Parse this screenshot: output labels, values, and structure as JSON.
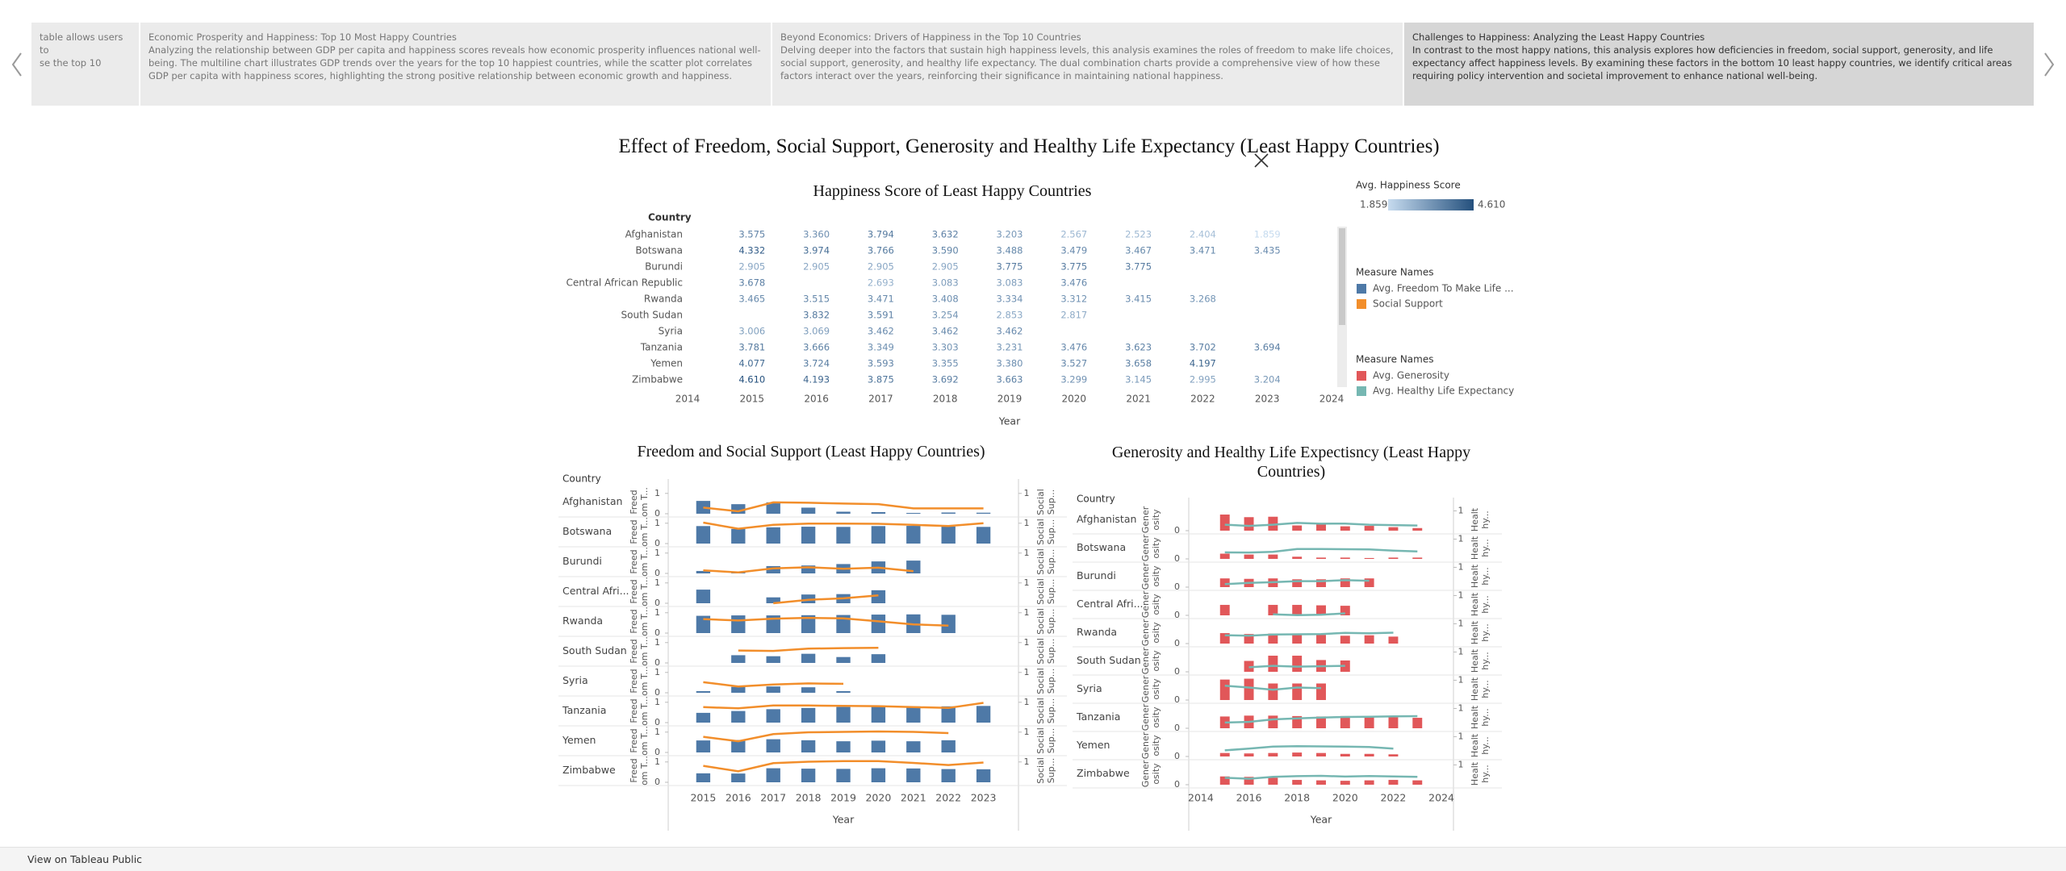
{
  "story_points": [
    {
      "lines": [
        "table allows users to",
        "se the top 10"
      ]
    },
    {
      "title": "Economic Prosperity and Happiness: Top 10 Most Happy Countries",
      "text": "Analyzing the relationship between GDP per capita and happiness scores reveals how economic prosperity influences national well-being. The multiline chart illustrates GDP trends over the years for the top 10 happiest countries, while the scatter plot correlates GDP per capita with happiness scores, highlighting the strong positive relationship between economic growth and happiness."
    },
    {
      "title": "Beyond Economics: Drivers of Happiness in the Top 10 Countries",
      "text": "Delving deeper into the factors that sustain high happiness levels, this analysis examines the roles of freedom to make life choices, social support, generosity, and healthy life expectancy. The dual combination charts provide a comprehensive view of how these factors interact over the years, reinforcing their significance in maintaining national happiness."
    },
    {
      "title": "Challenges to Happiness: Analyzing the Least Happy Countries",
      "text": "In contrast to the most happy nations, this analysis explores how deficiencies in freedom, social support, generosity, and life expectancy affect happiness levels. By examining these factors in the bottom 10 least happy countries, we identify critical areas requiring policy intervention and societal improvement to enhance national well-being."
    }
  ],
  "title": "Effect of Freedom, Social Support, Generosity and Healthy Life Expectancy (Least Happy Countries)",
  "chart_data": [
    {
      "type": "heatmap",
      "title": "Happiness Score of Least Happy Countries",
      "row_header": "Country",
      "x_label": "Year",
      "categories": [
        "Afghanistan",
        "Botswana",
        "Burundi",
        "Central African Republic",
        "Rwanda",
        "South Sudan",
        "Syria",
        "Tanzania",
        "Yemen",
        "Zimbabwe"
      ],
      "x": [
        2015,
        2016,
        2017,
        2018,
        2019,
        2020,
        2021,
        2022,
        2023
      ],
      "xlim": [
        2014,
        2024
      ],
      "xticks": [
        2014,
        2015,
        2016,
        2017,
        2018,
        2019,
        2020,
        2021,
        2022,
        2023,
        2024
      ],
      "values": [
        [
          3.575,
          3.36,
          3.794,
          3.632,
          3.203,
          2.567,
          2.523,
          2.404,
          1.859
        ],
        [
          4.332,
          3.974,
          3.766,
          3.59,
          3.488,
          3.479,
          3.467,
          3.471,
          3.435
        ],
        [
          2.905,
          2.905,
          2.905,
          2.905,
          3.775,
          3.775,
          3.775,
          null,
          null
        ],
        [
          3.678,
          null,
          2.693,
          3.083,
          3.083,
          3.476,
          null,
          null,
          null
        ],
        [
          3.465,
          3.515,
          3.471,
          3.408,
          3.334,
          3.312,
          3.415,
          3.268,
          null
        ],
        [
          null,
          3.832,
          3.591,
          3.254,
          2.853,
          2.817,
          null,
          null,
          null
        ],
        [
          3.006,
          3.069,
          3.462,
          3.462,
          3.462,
          null,
          null,
          null,
          null
        ],
        [
          3.781,
          3.666,
          3.349,
          3.303,
          3.231,
          3.476,
          3.623,
          3.702,
          3.694
        ],
        [
          4.077,
          3.724,
          3.593,
          3.355,
          3.38,
          3.527,
          3.658,
          4.197,
          null
        ],
        [
          4.61,
          4.193,
          3.875,
          3.692,
          3.663,
          3.299,
          3.145,
          2.995,
          3.204
        ]
      ],
      "value_labels": [
        [
          "3.575",
          "3.360",
          "3.794",
          "3.632",
          "3.203",
          "2.567",
          "2.523",
          "2.404",
          "1.859"
        ],
        [
          "4.332",
          "3.974",
          "3.766",
          "3.590",
          "3.488",
          "3.479",
          "3.467",
          "3.471",
          "3.435"
        ],
        [
          "2.905",
          "2.905",
          "2.905",
          "2.905",
          "3.775",
          "3.775",
          "3.775",
          null,
          null
        ],
        [
          "3.678",
          null,
          "2.693",
          "3.083",
          "3.083",
          "3.476",
          null,
          null,
          null
        ],
        [
          "3.465",
          "3.515",
          "3.471",
          "3.408",
          "3.334",
          "3.312",
          "3.415",
          "3.268",
          null
        ],
        [
          null,
          "3.832",
          "3.591",
          "3.254",
          "2.853",
          "2.817",
          null,
          null,
          null
        ],
        [
          "3.006",
          "3.069",
          "3.462",
          "3.462",
          "3.462",
          null,
          null,
          null,
          null
        ],
        [
          "3.781",
          "3.666",
          "3.349",
          "3.303",
          "3.231",
          "3.476",
          "3.623",
          "3.702",
          "3.694"
        ],
        [
          "4.077",
          "3.724",
          "3.593",
          "3.355",
          "3.380",
          "3.527",
          "3.658",
          "4.197",
          null
        ],
        [
          "4.610",
          "4.193",
          "3.875",
          "3.692",
          "3.663",
          "3.299",
          "3.145",
          "2.995",
          "3.204"
        ]
      ],
      "color_title": "Avg. Happiness Score",
      "color_range": [
        1.859,
        {
          "value": 4.61,
          "label": "4.610"
        }
      ],
      "colors": [
        "#c6dbef",
        "#24507d"
      ]
    },
    {
      "type": "bar_line",
      "title": "Freedom and Social Support (Least Happy Countries)",
      "row_header": "Country",
      "x_label": "Year",
      "legend_title": "Measure Names",
      "categories": [
        "Afghanistan",
        "Botswana",
        "Burundi",
        "Central Afri...",
        "Rwanda",
        "South Sudan",
        "Syria",
        "Tanzania",
        "Yemen",
        "Zimbabwe"
      ],
      "x": [
        2015,
        2016,
        2017,
        2018,
        2019,
        2020,
        2021,
        2022,
        2023
      ],
      "xlim": [
        2014,
        2024
      ],
      "xticks": [
        2015,
        2016,
        2017,
        2018,
        2019,
        2020,
        2021,
        2022,
        2023
      ],
      "ylim": [
        0,
        1.15
      ],
      "yticks": [
        0,
        1
      ],
      "y2lim": [
        0,
        1.15
      ],
      "y2ticks": [
        1
      ],
      "y_title_lines": [
        "Freed",
        "om T..."
      ],
      "y2_title_lines": [
        "Social",
        "Sup..."
      ],
      "series": [
        {
          "name": "Avg. Freedom To Make Life ...",
          "color": "#4e79a7",
          "values": [
            [
              0.63,
              0.47,
              0.56,
              0.3,
              0.1,
              0.08,
              0.04,
              0.06,
              0.05
            ],
            [
              0.86,
              0.72,
              0.8,
              0.83,
              0.82,
              0.86,
              0.87,
              0.84,
              0.82
            ],
            [
              0.12,
              0.06,
              0.36,
              0.39,
              0.46,
              0.59,
              0.63,
              null,
              null
            ],
            [
              0.67,
              null,
              0.29,
              0.43,
              0.45,
              0.64,
              null,
              null,
              null
            ],
            [
              0.85,
              0.87,
              0.87,
              0.88,
              0.89,
              0.91,
              0.92,
              0.9,
              null
            ],
            [
              null,
              0.38,
              0.33,
              0.45,
              0.29,
              0.43,
              null,
              null,
              null
            ],
            [
              0.08,
              0.29,
              0.31,
              0.27,
              0.08,
              null,
              null,
              null,
              null
            ],
            [
              0.48,
              0.57,
              0.66,
              0.72,
              0.77,
              0.78,
              0.8,
              0.8,
              0.82
            ],
            [
              0.59,
              0.61,
              0.65,
              0.6,
              0.55,
              0.58,
              0.55,
              0.6,
              null
            ],
            [
              0.44,
              0.43,
              0.69,
              0.67,
              0.66,
              0.69,
              0.68,
              0.65,
              0.64
            ]
          ]
        },
        {
          "name": "Social Support",
          "color": "#f28e2b",
          "axis": "y2",
          "values": [
            [
              0.3,
              0.12,
              0.56,
              0.54,
              0.5,
              0.47,
              0.26,
              0.26,
              0.26
            ],
            [
              1.03,
              0.73,
              0.92,
              0.98,
              0.98,
              0.97,
              0.92,
              0.86,
              1.0
            ],
            [
              0.15,
              0.05,
              0.25,
              0.3,
              0.23,
              0.28,
              0.11,
              null,
              null
            ],
            [
              0.0,
              null,
              0.0,
              0.17,
              0.24,
              0.39,
              null,
              null,
              null
            ],
            [
              0.69,
              0.62,
              0.71,
              0.75,
              0.72,
              0.58,
              0.43,
              0.37,
              null
            ],
            [
              null,
              0.61,
              0.59,
              0.7,
              0.73,
              0.74,
              null,
              null,
              null
            ],
            [
              0.52,
              0.31,
              0.41,
              0.46,
              0.44,
              null,
              null,
              null,
              null
            ],
            [
              0.76,
              0.7,
              0.84,
              0.84,
              0.82,
              0.81,
              0.76,
              0.72,
              0.97
            ],
            [
              0.77,
              0.55,
              0.9,
              0.99,
              1.01,
              1.03,
              1.01,
              0.95,
              null
            ],
            [
              0.81,
              0.54,
              0.94,
              1.01,
              1.04,
              1.04,
              0.95,
              0.85,
              0.97
            ]
          ]
        }
      ]
    },
    {
      "type": "bar_line",
      "title": "Generosity and Healthy Life Expectisncy (Least Happy Countries)",
      "row_header": "Country",
      "x_label": "Year",
      "legend_title": "Measure Names",
      "categories": [
        "Afghanistan",
        "Botswana",
        "Burundi",
        "Central Afri...",
        "Rwanda",
        "South Sudan",
        "Syria",
        "Tanzania",
        "Yemen",
        "Zimbabwe"
      ],
      "x": [
        2015,
        2016,
        2017,
        2018,
        2019,
        2020,
        2021,
        2022,
        2023
      ],
      "xlim": [
        2013.5,
        2024.5
      ],
      "xticks": [
        2014,
        2016,
        2018,
        2020,
        2022,
        2024
      ],
      "ylim": [
        0,
        0.5
      ],
      "yticks": [
        0
      ],
      "y2lim": [
        0,
        1.1
      ],
      "y2ticks": [
        1
      ],
      "y_title_lines": [
        "Gener",
        "osity"
      ],
      "y2_title_lines": [
        "Healt",
        "hy..."
      ],
      "series": [
        {
          "name": "Avg. Generosity",
          "color": "#e15759",
          "values": [
            [
              0.37,
              0.31,
              0.32,
              0.12,
              0.16,
              0.1,
              0.11,
              0.08,
              0.06
            ],
            [
              0.12,
              0.1,
              0.1,
              0.05,
              0.03,
              0.03,
              0.02,
              0.03,
              0.03
            ],
            [
              0.2,
              0.19,
              0.2,
              0.18,
              0.18,
              0.2,
              0.2,
              null,
              null
            ],
            [
              0.24,
              null,
              0.24,
              0.24,
              0.23,
              0.22,
              null,
              null,
              null
            ],
            [
              0.24,
              0.22,
              0.23,
              0.2,
              0.2,
              0.18,
              0.19,
              0.16,
              null
            ],
            [
              null,
              0.25,
              0.37,
              0.37,
              0.27,
              0.26,
              null,
              null,
              null
            ],
            [
              0.47,
              0.49,
              0.38,
              0.38,
              0.38,
              null,
              null,
              null,
              null
            ],
            [
              0.27,
              0.29,
              0.29,
              0.28,
              0.27,
              0.28,
              0.27,
              0.25,
              0.24
            ],
            [
              0.08,
              0.07,
              0.08,
              0.09,
              0.08,
              0.06,
              0.06,
              0.05,
              null
            ],
            [
              0.19,
              0.18,
              0.16,
              0.11,
              0.1,
              0.09,
              0.1,
              0.11,
              0.1
            ]
          ]
        },
        {
          "name": "Avg. Healthy Life Expectancy",
          "color": "#76b7b2",
          "axis": "y2",
          "values": [
            [
              0.3,
              0.24,
              0.3,
              0.39,
              0.35,
              0.36,
              0.3,
              0.28,
              0.26
            ],
            [
              0.33,
              0.32,
              0.36,
              0.5,
              0.5,
              0.49,
              0.48,
              0.42,
              0.38
            ],
            [
              0.15,
              0.21,
              0.25,
              0.3,
              0.3,
              0.35,
              0.32,
              null,
              null
            ],
            [
              0.02,
              null,
              0.05,
              0.01,
              0.03,
              0.1,
              null,
              null,
              null
            ],
            [
              0.42,
              0.4,
              0.46,
              0.47,
              0.48,
              0.54,
              0.52,
              0.55,
              null
            ],
            [
              null,
              0.23,
              0.3,
              0.26,
              0.28,
              0.3,
              null,
              null,
              null
            ],
            [
              0.72,
              0.63,
              0.52,
              0.63,
              0.6,
              null,
              null,
              null,
              null
            ],
            [
              0.29,
              0.32,
              0.45,
              0.5,
              0.54,
              0.57,
              0.58,
              0.6,
              0.61
            ],
            [
              0.31,
              0.4,
              0.5,
              0.52,
              0.51,
              0.5,
              0.48,
              0.4,
              null
            ],
            [
              0.35,
              0.3,
              0.4,
              0.43,
              0.45,
              0.41,
              0.44,
              0.42,
              0.4
            ]
          ]
        }
      ]
    }
  ],
  "footer": {
    "link": "View on Tableau Public"
  }
}
